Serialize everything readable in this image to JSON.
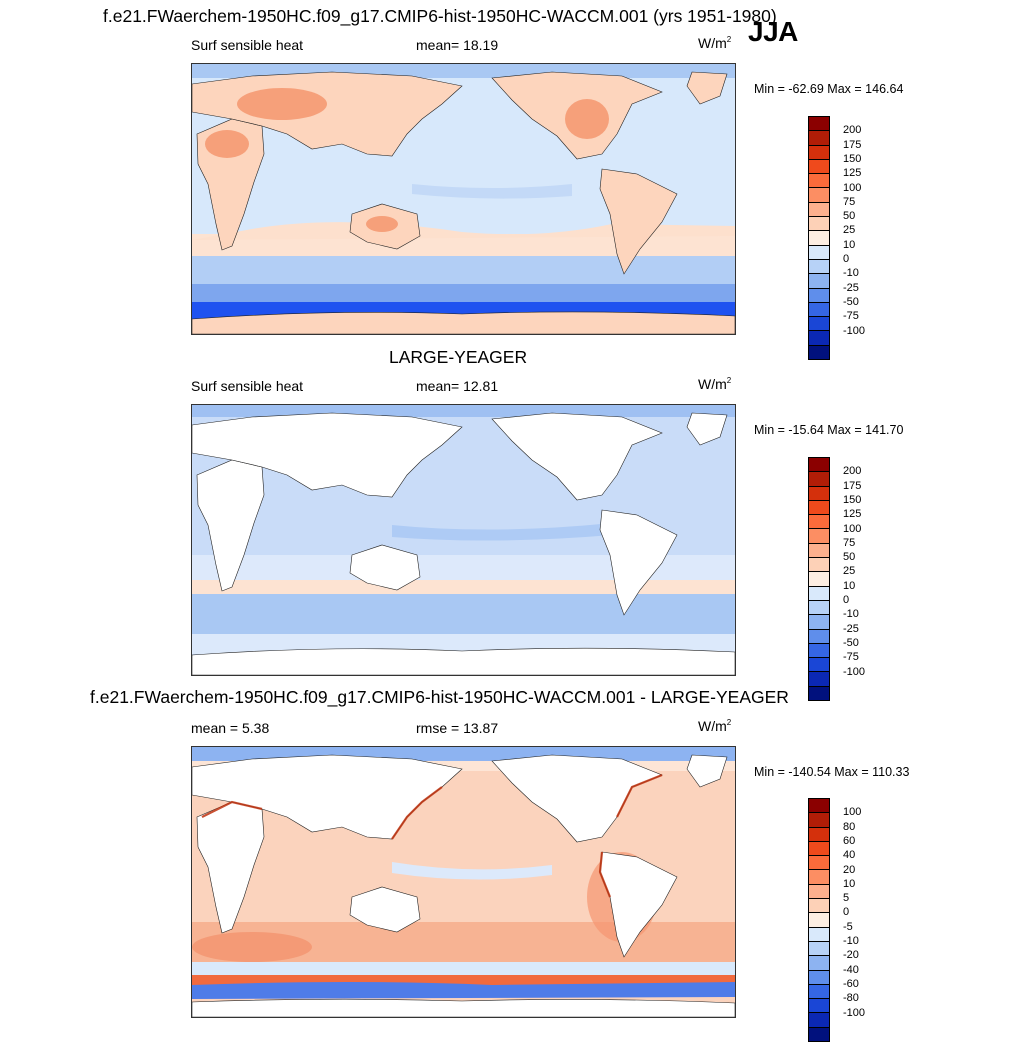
{
  "page": {
    "title": "f.e21.FWaerchem-1950HC.f09_g17.CMIP6-hist-1950HC-WACCM.001 (yrs 1951-1980)",
    "season": "JJA"
  },
  "panels": [
    {
      "id": "case",
      "heading": "",
      "left_label": "Surf sensible heat",
      "mid_label": "mean=  18.19",
      "units": "W/m",
      "units_sup": "2",
      "minmax": "Min = -62.69 Max = 146.64",
      "levels": [
        "200",
        "175",
        "150",
        "125",
        "100",
        "75",
        "50",
        "25",
        "10",
        "0",
        "-10",
        "-25",
        "-50",
        "-75",
        "-100"
      ],
      "colors": [
        "#8b0000",
        "#b11d07",
        "#d4300c",
        "#ef4a1c",
        "#fb6b3b",
        "#fc8e63",
        "#fdb08e",
        "#fdd1b7",
        "#fdeee2",
        "#d9e9fb",
        "#b7d2f7",
        "#8db3f1",
        "#5f8eeb",
        "#3566e4",
        "#1a46d6",
        "#0b28b4",
        "#01117d"
      ],
      "land_fill": "#fdd5bd",
      "ocean_fill": "#d7e8fb"
    },
    {
      "id": "control",
      "heading": "LARGE-YEAGER",
      "left_label": "Surf sensible heat",
      "mid_label": "mean=  12.81",
      "units": "W/m",
      "units_sup": "2",
      "minmax": "Min = -15.64 Max = 141.70",
      "levels": [
        "200",
        "175",
        "150",
        "125",
        "100",
        "75",
        "50",
        "25",
        "10",
        "0",
        "-10",
        "-25",
        "-50",
        "-75",
        "-100"
      ],
      "colors": [
        "#8b0000",
        "#b11d07",
        "#d4300c",
        "#ef4a1c",
        "#fb6b3b",
        "#fc8e63",
        "#fdb08e",
        "#fdd1b7",
        "#fdeee2",
        "#d9e9fb",
        "#b7d2f7",
        "#8db3f1",
        "#5f8eeb",
        "#3566e4",
        "#1a46d6",
        "#0b28b4",
        "#01117d"
      ],
      "land_fill": "#ffffff",
      "ocean_fill": "#c9dcf8"
    },
    {
      "id": "diff",
      "heading": "f.e21.FWaerchem-1950HC.f09_g17.CMIP6-hist-1950HC-WACCM.001 - LARGE-YEAGER",
      "left_label": "mean =   5.38",
      "mid_label": "rmse =  13.87",
      "units": "W/m",
      "units_sup": "2",
      "minmax": "Min = -140.54 Max = 110.33",
      "levels": [
        "100",
        "80",
        "60",
        "40",
        "20",
        "10",
        "5",
        "0",
        "-5",
        "-10",
        "-20",
        "-40",
        "-60",
        "-80",
        "-100"
      ],
      "colors": [
        "#8b0000",
        "#b11d07",
        "#d4300c",
        "#ef4a1c",
        "#fb6b3b",
        "#fc8e63",
        "#fdb08e",
        "#fdd1b7",
        "#fdeee2",
        "#d9e9fb",
        "#b7d2f7",
        "#8db3f1",
        "#5f8eeb",
        "#3566e4",
        "#1a46d6",
        "#0b28b4",
        "#01117d"
      ],
      "land_fill": "#ffffff",
      "ocean_fill": "#fbd3bd"
    }
  ]
}
